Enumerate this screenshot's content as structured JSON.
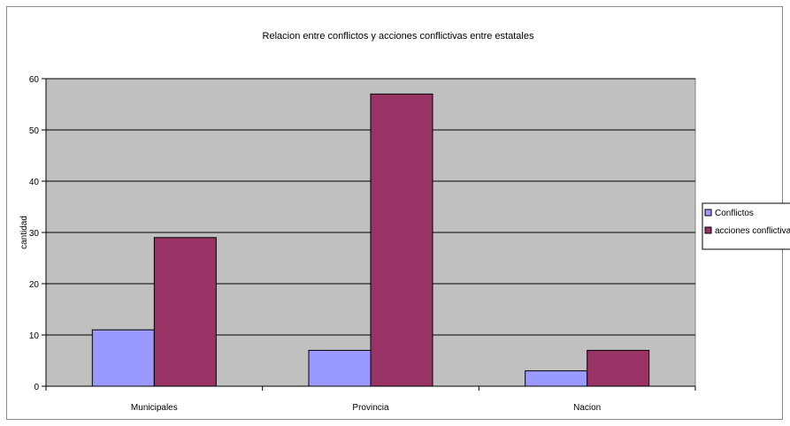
{
  "chart_data": {
    "type": "bar",
    "title": "Relacion entre conflictos y acciones conflictivas entre estatales",
    "xlabel": "",
    "ylabel": "cantidad",
    "categories": [
      "Municipales",
      "Provincia",
      "Nacion"
    ],
    "series": [
      {
        "name": "Conflictos",
        "values": [
          11,
          7,
          3
        ],
        "color": "#9999ff"
      },
      {
        "name": "acciones conflictivas",
        "values": [
          29,
          57,
          7
        ],
        "color": "#993366"
      }
    ],
    "ylim": [
      0,
      60
    ],
    "yticks": [
      0,
      10,
      20,
      30,
      40,
      50,
      60
    ],
    "grid": true,
    "plot_background": "#c0c0c0",
    "legend_position": "right"
  }
}
